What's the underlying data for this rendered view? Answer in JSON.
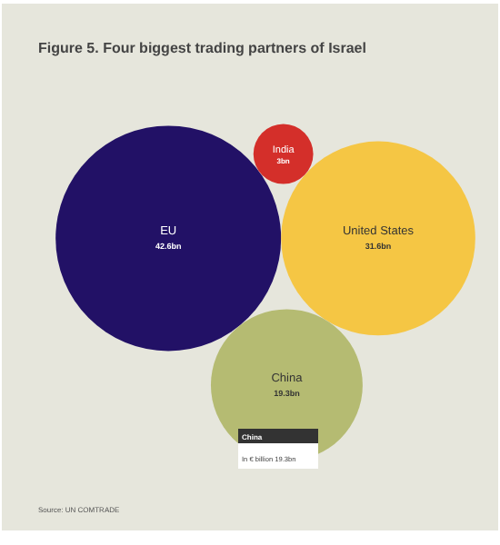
{
  "chart_data": {
    "type": "other",
    "title": "Figure 5. Four biggest trading partners of Israel",
    "categories": [
      "EU",
      "United States",
      "India",
      "China"
    ],
    "values": [
      42.6,
      31.6,
      3,
      19.3
    ],
    "value_labels": [
      "42.6bn",
      "31.6bn",
      "3bn",
      "19.3bn"
    ],
    "colors": [
      "#221166",
      "#f5c644",
      "#d42f2a",
      "#b5bb72"
    ],
    "annotations": [
      "China",
      "In € billion 19.3bn",
      "Source: UN COMTRADE"
    ]
  }
}
